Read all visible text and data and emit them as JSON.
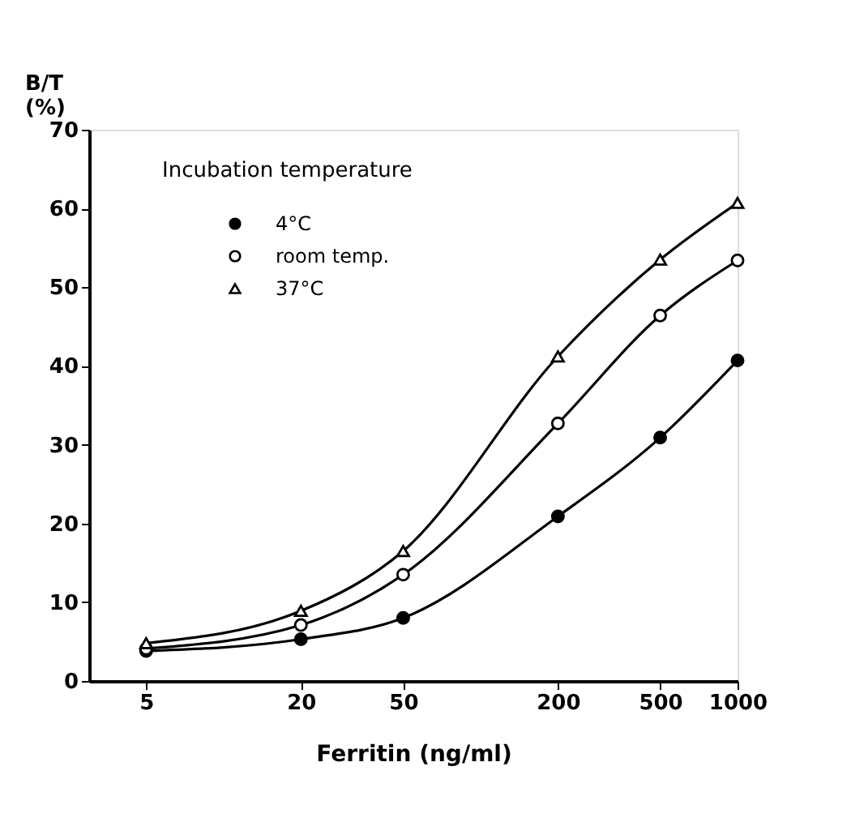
{
  "chart_data": {
    "type": "line",
    "xlabel": "Ferritin (ng/ml)",
    "ylabel": "B/T (%)",
    "legend_title": "Incubation temperature",
    "x": [
      5,
      20,
      50,
      200,
      500,
      1000
    ],
    "series": [
      {
        "name": "4°C",
        "color": "#000000",
        "marker": "circle",
        "values": [
          3.8,
          5.3,
          8.0,
          20.9,
          30.9,
          40.7
        ]
      },
      {
        "name": "room temp.",
        "color": "#000000",
        "marker": "circle",
        "values": [
          4.1,
          7.1,
          13.5,
          32.7,
          46.4,
          53.4
        ]
      },
      {
        "name": "37°C",
        "color": "#000000",
        "marker": "triangle",
        "values": [
          4.8,
          8.9,
          16.5,
          41.2,
          53.5,
          60.7
        ]
      }
    ],
    "log": "x",
    "xlim": [
      3,
      1000
    ],
    "xticks": [
      5,
      20,
      50,
      200,
      500,
      1000
    ],
    "ylim": [
      0,
      70
    ],
    "yticks": [
      0,
      10,
      20,
      30,
      40,
      50,
      60,
      70
    ],
    "grid": false,
    "legend": "top left",
    "line_style": "solid"
  }
}
